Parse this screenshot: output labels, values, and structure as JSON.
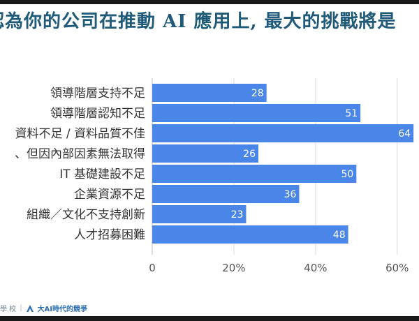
{
  "title": "認為你的公司在推動 AI 應用上, 最大的挑戰將是",
  "footer": {
    "left_text": "學 校",
    "brand_text": "大AI時代的競爭"
  },
  "colors": {
    "bar": "#4a86e8",
    "title": "#1f5a78",
    "grid": "#d9d9d9",
    "label": "#333333"
  },
  "chart_data": {
    "type": "bar",
    "orientation": "horizontal",
    "categories": [
      "領導階層支持不足",
      "領導階層認知不足",
      "資料不足 / 資料品質不佳",
      "、但因內部因素無法取得",
      "IT 基礎建設不足",
      "企業資源不足",
      "組織／文化不支持創新",
      "人才招募困難"
    ],
    "values": [
      28,
      51,
      64,
      26,
      50,
      36,
      23,
      48
    ],
    "xlim": [
      0,
      65
    ],
    "xticks": [
      0,
      20,
      40,
      60
    ],
    "xtick_labels": [
      "0",
      "20%",
      "40%",
      "60%"
    ],
    "grid": true
  }
}
